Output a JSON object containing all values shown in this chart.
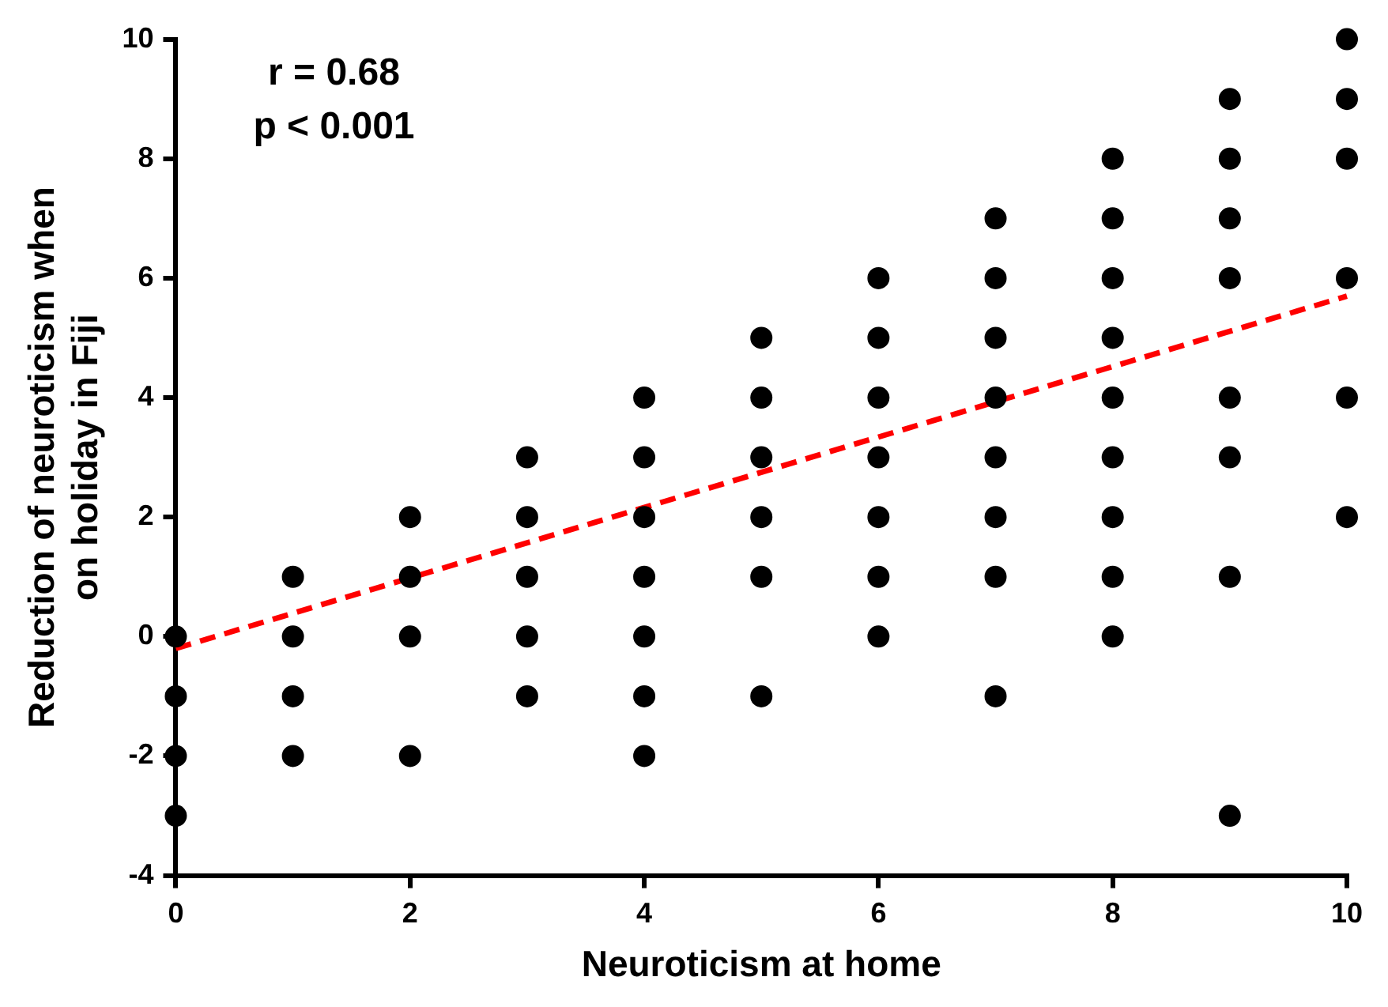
{
  "chart_data": {
    "type": "scatter",
    "xlabel": "Neuroticism at home",
    "ylabel": "Reduction of neuroticism when on holiday in Fiji",
    "annotations": [
      "r = 0.68",
      "p < 0.001"
    ],
    "xlim": [
      0,
      10
    ],
    "xticks": [
      0,
      2,
      4,
      6,
      8,
      10
    ],
    "ylim": [
      -4,
      10
    ],
    "yticks": [
      -4,
      -2,
      0,
      2,
      4,
      6,
      8,
      10
    ],
    "grid": false,
    "legend": false,
    "series": [
      {
        "type": "scatter",
        "color": "#000000",
        "marker": "circle",
        "x": [
          0,
          0,
          0,
          0,
          1,
          1,
          1,
          1,
          2,
          2,
          2,
          2,
          3,
          3,
          3,
          3,
          3,
          4,
          4,
          4,
          4,
          4,
          4,
          4,
          5,
          5,
          5,
          5,
          5,
          5,
          6,
          6,
          6,
          6,
          6,
          6,
          6,
          7,
          7,
          7,
          7,
          7,
          7,
          7,
          7,
          8,
          8,
          8,
          8,
          8,
          8,
          8,
          8,
          8,
          9,
          9,
          9,
          9,
          9,
          9,
          9,
          9,
          10,
          10,
          10,
          10,
          10,
          10
        ],
        "values": [
          0,
          -1,
          -2,
          -3,
          1,
          0,
          -1,
          -2,
          2,
          1,
          0,
          -2,
          3,
          2,
          1,
          0,
          -1,
          4,
          3,
          2,
          1,
          0,
          -1,
          -2,
          5,
          4,
          3,
          2,
          1,
          -1,
          6,
          5,
          4,
          3,
          2,
          1,
          0,
          7,
          6,
          5,
          4,
          3,
          2,
          1,
          -1,
          8,
          7,
          6,
          5,
          4,
          3,
          2,
          1,
          0,
          9,
          8,
          7,
          6,
          4,
          3,
          1,
          -3,
          10,
          9,
          8,
          6,
          4,
          2
        ]
      },
      {
        "type": "line",
        "color": "#ff0000",
        "marker": "none",
        "line_style": "dashed",
        "x": [
          0,
          10
        ],
        "values": [
          -0.2,
          5.7
        ]
      }
    ]
  }
}
